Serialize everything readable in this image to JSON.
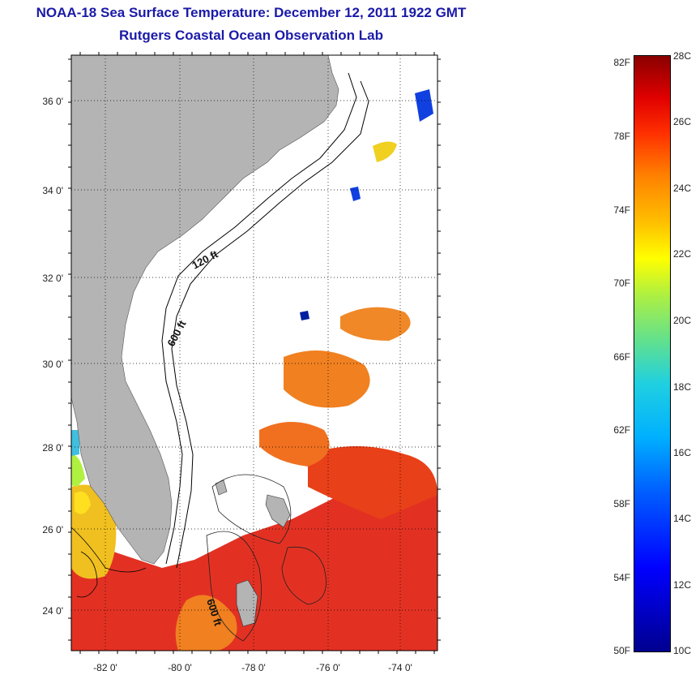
{
  "header": {
    "title": "NOAA-18 Sea Surface Temperature:  December 12, 2011 1922 GMT",
    "subtitle": "Rutgers Coastal Ocean Observation Lab"
  },
  "map": {
    "lon_labels": [
      "-82 0'",
      "-80 0'",
      "-78 0'",
      "-76 0'",
      "-74 0'"
    ],
    "lat_labels": [
      "36 0'",
      "34 0'",
      "32 0'",
      "30 0'",
      "28 0'",
      "26 0'",
      "24 0'"
    ],
    "contour_labels": [
      "120 ft",
      "600 ft",
      "600 ft"
    ],
    "colors": {
      "land": "#b4b4b4",
      "ocean_nodata": "#ffffff",
      "warm": "#e02010",
      "orange": "#f08020",
      "yellow": "#f0e020",
      "cool": "#1040e0"
    }
  },
  "colorbar": {
    "fahrenheit_labels": [
      "82F",
      "78F",
      "74F",
      "70F",
      "66F",
      "62F",
      "58F",
      "54F",
      "50F"
    ],
    "celsius_labels": [
      "28C",
      "26C",
      "24C",
      "22C",
      "20C",
      "18C",
      "16C",
      "14C",
      "12C",
      "10C"
    ],
    "min_c": 10,
    "max_c": 28
  }
}
